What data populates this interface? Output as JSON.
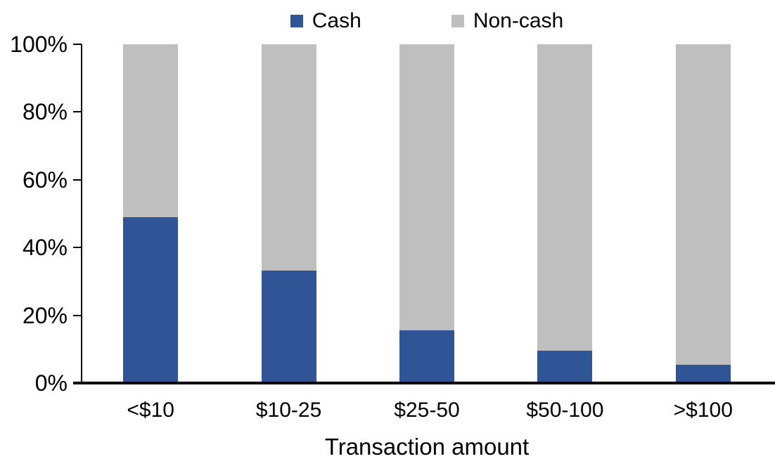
{
  "chart_data": {
    "type": "bar",
    "stacked": true,
    "orientation": "vertical",
    "title": "",
    "xlabel": "Transaction amount",
    "ylabel": "",
    "categories": [
      "<$10",
      "$10-25",
      "$25-50",
      "$50-100",
      ">$100"
    ],
    "series": [
      {
        "name": "Cash",
        "color": "#2F5597",
        "values": [
          49,
          33.2,
          15.6,
          9.5,
          5.4
        ]
      },
      {
        "name": "Non-cash",
        "color": "#BFBFBF",
        "values": [
          51,
          66.8,
          84.4,
          90.5,
          94.6
        ]
      }
    ],
    "ylim": [
      0,
      100
    ],
    "yticks": [
      "0%",
      "20%",
      "40%",
      "60%",
      "80%",
      "100%"
    ],
    "ytick_values": [
      0,
      20,
      40,
      60,
      80,
      100
    ],
    "grid": false,
    "legend_position": "top-center",
    "axis_color": "#000000",
    "background_color": "#FFFFFF"
  }
}
